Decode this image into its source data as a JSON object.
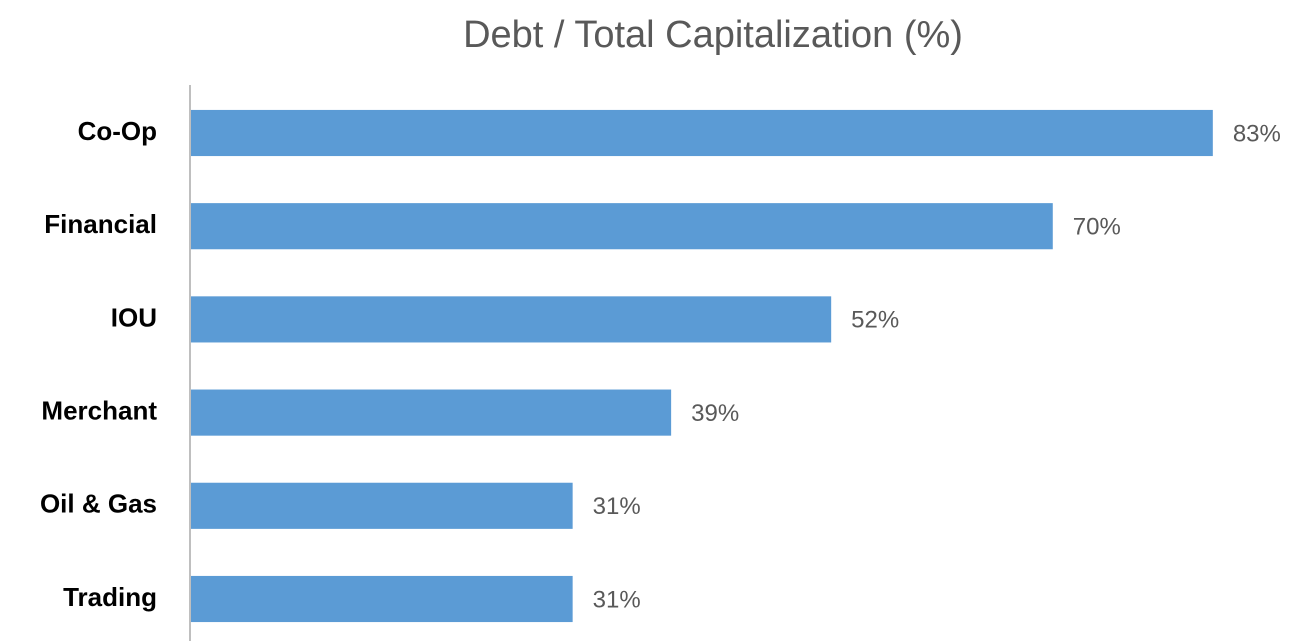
{
  "chart_data": {
    "type": "bar",
    "orientation": "horizontal",
    "title": "Debt / Total Capitalization (%)",
    "categories": [
      "Co-Op",
      "Financial",
      "IOU",
      "Merchant",
      "Oil & Gas",
      "Trading"
    ],
    "values": [
      83,
      70,
      52,
      39,
      31,
      31
    ],
    "value_labels": [
      "83%",
      "70%",
      "52%",
      "39%",
      "31%",
      "31%"
    ],
    "color": "#5b9bd5",
    "xlim": [
      0,
      90
    ],
    "grid": false
  }
}
